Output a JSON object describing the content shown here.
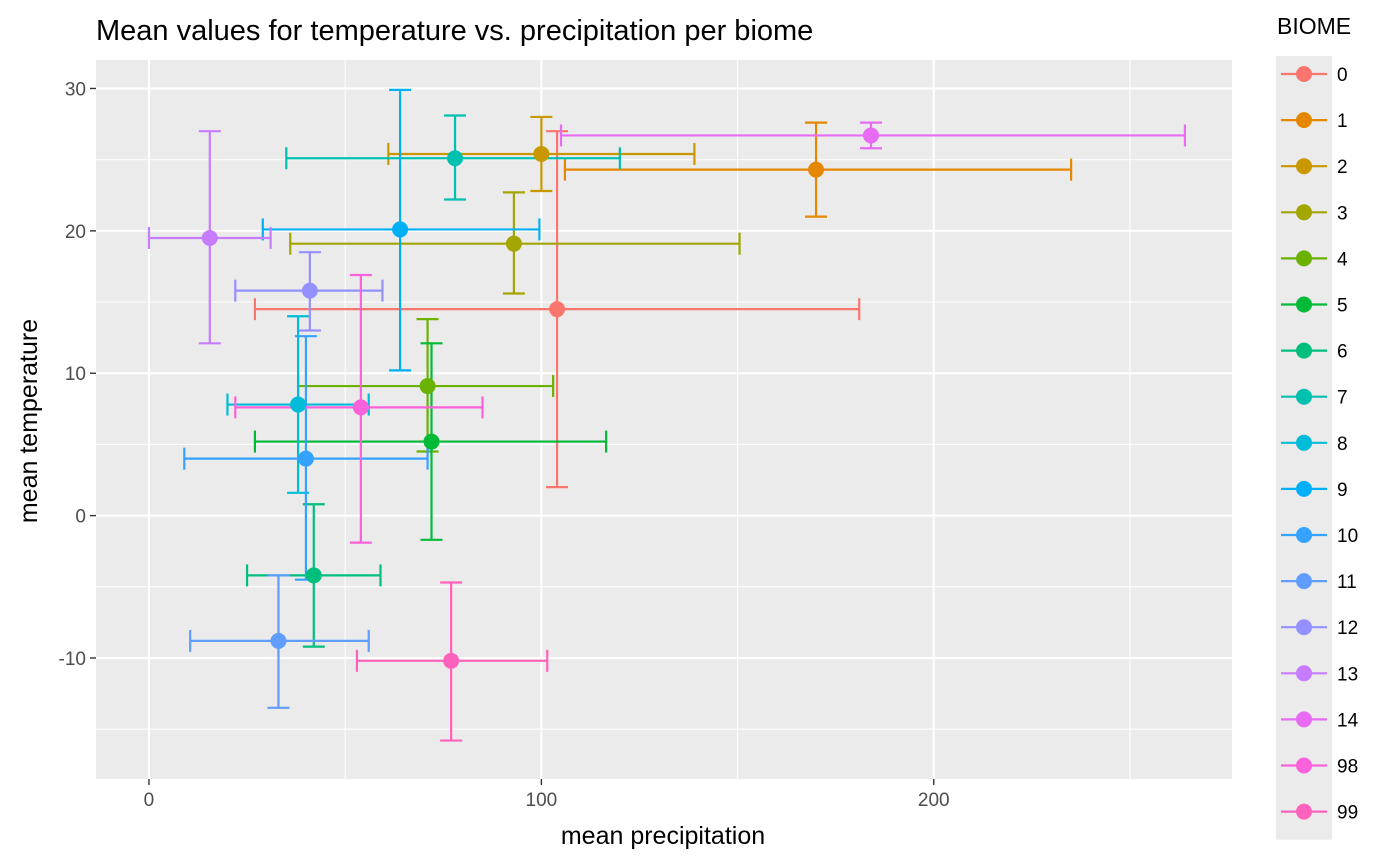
{
  "chart_data": {
    "type": "scatter",
    "title": "Mean values for temperature vs. precipitation per biome",
    "xlabel": "mean precipitation",
    "ylabel": "mean temperature",
    "xlim": [
      -13.5,
      276
    ],
    "ylim": [
      -18.5,
      32
    ],
    "x_ticks": [
      0,
      100,
      200
    ],
    "y_ticks": [
      -10,
      0,
      10,
      20,
      30
    ],
    "x_tick_labels": [
      "0",
      "100",
      "200"
    ],
    "y_tick_labels": [
      "-10",
      "0",
      "10",
      "20",
      "30"
    ],
    "grid": true,
    "legend": {
      "title": "BIOME",
      "placement": "right"
    },
    "series": [
      {
        "name": "0",
        "color": "#F8766D",
        "x": 104,
        "y": 14.5,
        "xmin": 27,
        "xmax": 181,
        "ymin": 2.0,
        "ymax": 27.0
      },
      {
        "name": "1",
        "color": "#E58700",
        "x": 170,
        "y": 24.3,
        "xmin": 106,
        "xmax": 235,
        "ymin": 21.0,
        "ymax": 27.6
      },
      {
        "name": "2",
        "color": "#C99800",
        "x": 100,
        "y": 25.4,
        "xmin": 61,
        "xmax": 139,
        "ymin": 22.8,
        "ymax": 28.0
      },
      {
        "name": "3",
        "color": "#A3A500",
        "x": 93,
        "y": 19.1,
        "xmin": 36,
        "xmax": 150.5,
        "ymin": 15.6,
        "ymax": 22.7
      },
      {
        "name": "4",
        "color": "#6BB100",
        "x": 71,
        "y": 9.1,
        "xmin": 38,
        "xmax": 103,
        "ymin": 4.5,
        "ymax": 13.8
      },
      {
        "name": "5",
        "color": "#00BA38",
        "x": 72,
        "y": 5.2,
        "xmin": 27,
        "xmax": 116.5,
        "ymin": -1.7,
        "ymax": 12.1
      },
      {
        "name": "6",
        "color": "#00BF7D",
        "x": 42,
        "y": -4.2,
        "xmin": 25,
        "xmax": 59,
        "ymin": -9.2,
        "ymax": 0.8
      },
      {
        "name": "7",
        "color": "#00C0AF",
        "x": 78,
        "y": 25.1,
        "xmin": 35,
        "xmax": 120,
        "ymin": 22.2,
        "ymax": 28.1
      },
      {
        "name": "8",
        "color": "#00BCD8",
        "x": 38,
        "y": 7.8,
        "xmin": 20,
        "xmax": 56,
        "ymin": 1.6,
        "ymax": 14.0
      },
      {
        "name": "9",
        "color": "#00B0F6",
        "x": 64,
        "y": 20.1,
        "xmin": 29,
        "xmax": 99.5,
        "ymin": 10.2,
        "ymax": 29.9
      },
      {
        "name": "10",
        "color": "#35A2FF",
        "x": 40,
        "y": 4.0,
        "xmin": 9,
        "xmax": 71,
        "ymin": -4.5,
        "ymax": 12.6
      },
      {
        "name": "11",
        "color": "#619CFF",
        "x": 33,
        "y": -8.8,
        "xmin": 10.5,
        "xmax": 56,
        "ymin": -13.5,
        "ymax": -4.2
      },
      {
        "name": "12",
        "color": "#9590FF",
        "x": 41,
        "y": 15.8,
        "xmin": 22,
        "xmax": 59.5,
        "ymin": 13.0,
        "ymax": 18.5
      },
      {
        "name": "13",
        "color": "#C77CFF",
        "x": 15.5,
        "y": 19.5,
        "xmin": 0,
        "xmax": 31,
        "ymin": 12.1,
        "ymax": 27.0
      },
      {
        "name": "14",
        "color": "#E76BF3",
        "x": 184,
        "y": 26.7,
        "xmin": 105,
        "xmax": 264,
        "ymin": 25.8,
        "ymax": 27.6
      },
      {
        "name": "98",
        "color": "#FA62DB",
        "x": 54,
        "y": 7.6,
        "xmin": 22,
        "xmax": 85,
        "ymin": -1.9,
        "ymax": 16.9
      },
      {
        "name": "99",
        "color": "#FF62BC",
        "x": 77,
        "y": -10.2,
        "xmin": 53,
        "xmax": 101.5,
        "ymin": -15.8,
        "ymax": -4.7
      }
    ]
  }
}
